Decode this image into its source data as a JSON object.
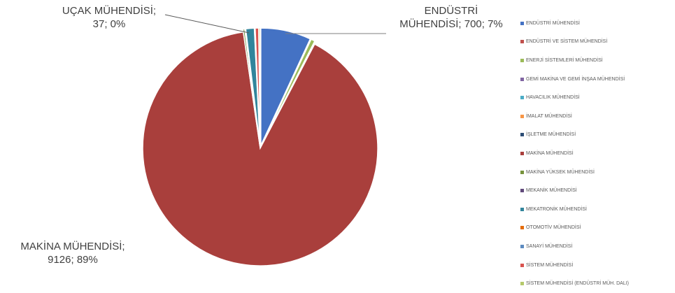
{
  "chart_data": {
    "type": "pie",
    "title": "",
    "labels": [
      "ENDÜSTRİ MÜHENDİSİ",
      "ENDÜSTRİ VE SİSTEM MÜHENDİSİ",
      "ENERJİ SİSTEMLERİ MÜHENDİSİ",
      "GEMİ MAKİNA VE GEMİ İNŞAA MÜHENDİSİ",
      "HAVACILIK MÜHENDİSİ",
      "İMALAT MÜHENDİSİ",
      "İŞLETME MÜHENDİSİ",
      "MAKİNA MÜHENDİSİ",
      "MAKİNA YÜKSEK MÜHENDİSİ",
      "MEKANİK MÜHENDİSİ",
      "MEKATRONİK MÜHENDİSİ",
      "OTOMOTİV MÜHENDİSİ",
      "SANAYİ MÜHENDİSİ",
      "SİSTEM MÜHENDİSİ",
      "SİSTEM MÜHENDİSİ (ENDÜSTRİ MÜH. DALI)"
    ],
    "values": [
      700,
      5,
      55,
      3,
      8,
      2,
      4,
      9126,
      25,
      12,
      118,
      4,
      6,
      48,
      20
    ],
    "colors": [
      "#4472C4",
      "#C0504D",
      "#9BBB59",
      "#8064A2",
      "#4BACC6",
      "#F79646",
      "#2C4D75",
      "#A93F3C",
      "#77933C",
      "#604A7B",
      "#31859C",
      "#E46C0A",
      "#5C8BC0",
      "#D9534F",
      "#B5C96B"
    ],
    "legend_position": "right",
    "data_labels": [
      {
        "category": "ENDÜSTRİ MÜHENDİSİ",
        "line1": "ENDÜSTRİ",
        "line2": "MÜHENDİSİ; 700; 7%"
      },
      {
        "category": "UÇAK MÜHENDİSİ",
        "line1": "UÇAK MÜHENDİSİ;",
        "line2": "37; 0%"
      },
      {
        "category": "MAKİNA MÜHENDİSİ",
        "line1": "MAKİNA MÜHENDİSİ;",
        "line2": "9126; 89%"
      }
    ]
  }
}
